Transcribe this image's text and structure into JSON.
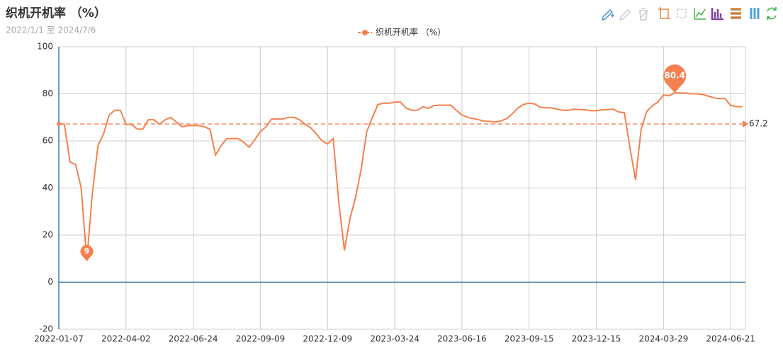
{
  "chart_data": {
    "type": "line",
    "title": "织机开机率 （%）",
    "subtitle": "2022/1/1 至 2024/7/6",
    "categories": [
      "2022-01-07",
      null,
      null,
      null,
      null,
      null,
      null,
      null,
      null,
      null,
      null,
      null,
      "2022-04-02",
      null,
      null,
      null,
      null,
      null,
      null,
      null,
      null,
      null,
      null,
      null,
      "2022-06-24",
      null,
      null,
      null,
      null,
      null,
      null,
      null,
      null,
      null,
      null,
      null,
      "2022-09-09",
      null,
      null,
      null,
      null,
      null,
      null,
      null,
      null,
      null,
      null,
      null,
      "2022-12-09",
      null,
      null,
      null,
      null,
      null,
      null,
      null,
      null,
      null,
      null,
      null,
      "2023-03-24",
      null,
      null,
      null,
      null,
      null,
      null,
      null,
      null,
      null,
      null,
      null,
      "2023-06-16",
      null,
      null,
      null,
      null,
      null,
      null,
      null,
      null,
      null,
      null,
      null,
      "2023-09-15",
      null,
      null,
      null,
      null,
      null,
      null,
      null,
      null,
      null,
      null,
      null,
      "2023-12-15",
      null,
      null,
      null,
      null,
      null,
      null,
      null,
      null,
      null,
      null,
      null,
      "2024-03-29",
      null,
      null,
      null,
      null,
      null,
      null,
      null,
      null,
      null,
      null,
      null,
      "2024-06-21",
      null,
      null
    ],
    "series": [
      {
        "name": "织机开机率 （%）",
        "color": "#f5804f",
        "values": [
          67.4,
          67,
          51,
          50,
          40,
          9,
          38,
          58,
          63,
          71,
          73,
          73,
          67,
          67,
          65,
          65,
          69,
          69,
          67,
          69,
          70,
          68,
          66,
          66.5,
          66.5,
          66.5,
          66,
          65,
          54,
          58,
          61,
          61,
          61,
          59.5,
          57.3,
          60.5,
          64,
          66,
          69.3,
          69.3,
          69.3,
          70,
          70,
          69,
          67,
          65.5,
          63,
          60,
          58.7,
          61,
          34,
          13.5,
          27,
          36,
          48,
          64,
          70,
          75.5,
          76,
          76,
          76.5,
          76.5,
          74,
          73,
          73,
          74.5,
          73.8,
          75,
          75.2,
          75.2,
          75.2,
          73,
          71,
          70,
          69.5,
          69,
          68.4,
          68.3,
          68,
          68.5,
          69.5,
          71.5,
          74,
          75.5,
          76,
          75.7,
          74.3,
          74,
          74,
          73.5,
          73,
          73,
          73.5,
          73.3,
          73.2,
          72.8,
          72.8,
          73.2,
          73.3,
          73.5,
          72.3,
          72,
          57,
          43.5,
          65,
          72.5,
          75,
          76.5,
          79.5,
          79.2,
          80.4,
          80.4,
          80.3,
          80,
          80,
          79.7,
          79,
          78.3,
          78,
          78,
          75,
          74.6,
          74.5
        ]
      }
    ],
    "ylim": [
      -20,
      100
    ],
    "yticks": [
      -20,
      0,
      20,
      40,
      60,
      80,
      100
    ],
    "grid": true,
    "average": 67.2,
    "min_point": 9,
    "max_point": 80.4
  }
}
